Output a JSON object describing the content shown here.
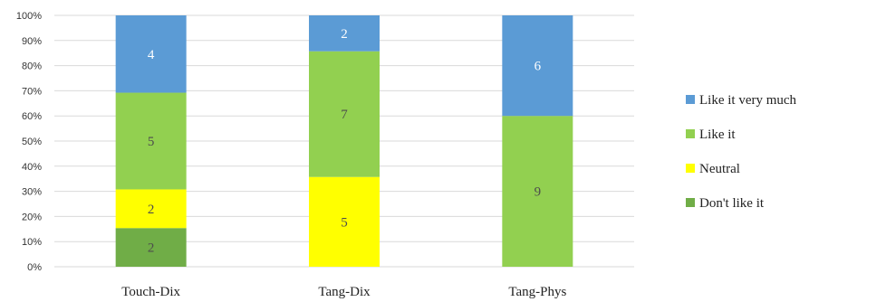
{
  "chart_data": {
    "type": "bar",
    "stacked": true,
    "normalized": true,
    "categories": [
      "Touch-Dix",
      "Tang-Dix",
      "Tang-Phys"
    ],
    "series": [
      {
        "name": "Don't like it",
        "values": [
          2,
          0,
          0
        ],
        "color": "#70ad47"
      },
      {
        "name": "Neutral",
        "values": [
          2,
          5,
          0
        ],
        "color": "#ffff00"
      },
      {
        "name": "Like it",
        "values": [
          5,
          7,
          9
        ],
        "color": "#92d050"
      },
      {
        "name": "Like it very much",
        "values": [
          4,
          2,
          6
        ],
        "color": "#5b9bd5"
      }
    ],
    "y_ticks": [
      "0%",
      "10%",
      "20%",
      "30%",
      "40%",
      "50%",
      "60%",
      "70%",
      "80%",
      "90%",
      "100%"
    ],
    "ylim": [
      0,
      100
    ],
    "grid": true,
    "legend_position": "right",
    "legend_order": [
      "Like it very much",
      "Like it",
      "Neutral",
      "Don't like it"
    ]
  }
}
